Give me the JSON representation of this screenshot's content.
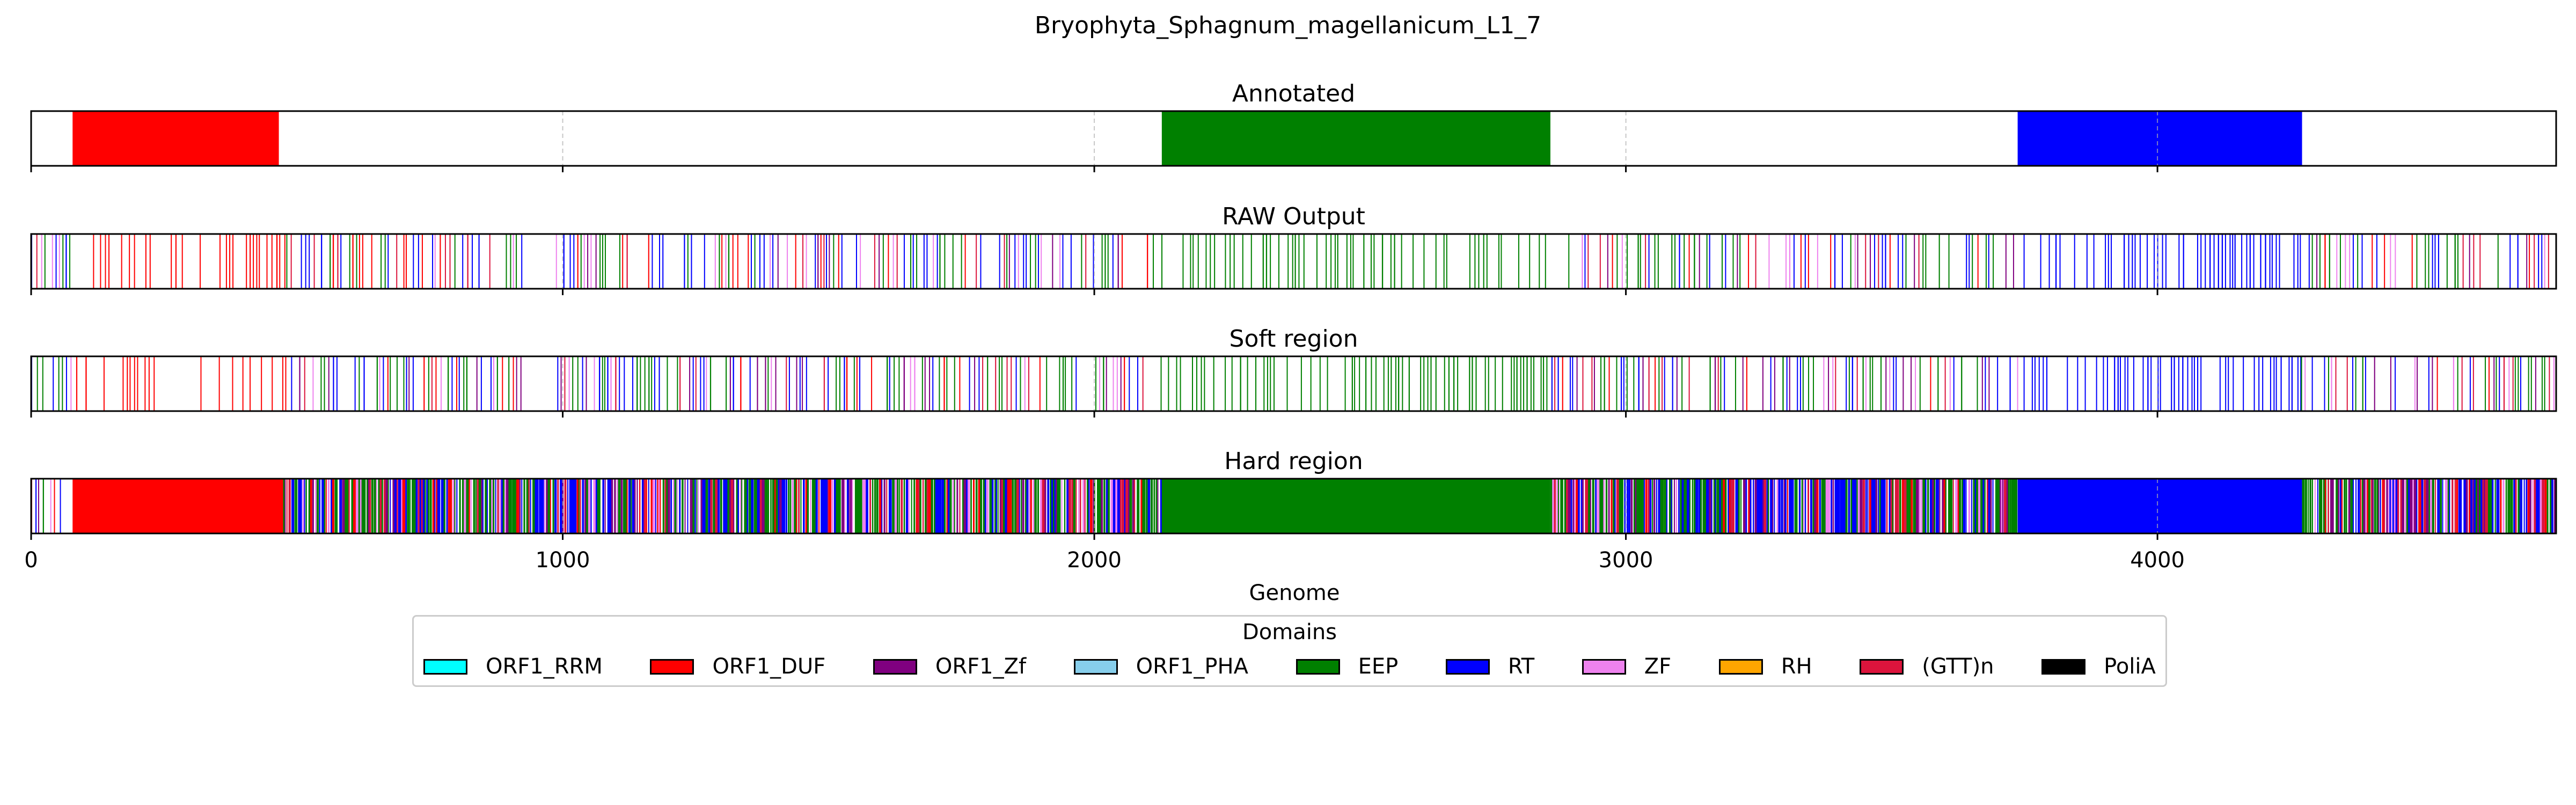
{
  "chart_data": {
    "type": "genome-track",
    "title": "Bryophyta_Sphagnum_magellanicum_L1_7",
    "xlabel": "Genome",
    "xlim": [
      0,
      4750
    ],
    "xticks": [
      0,
      1000,
      2000,
      3000,
      4000
    ],
    "colors": {
      "ORF1_RRM": "#00ffff",
      "ORF1_DUF": "#ff0000",
      "ORF1_Zf": "#800080",
      "ORF1_PHA": "#87ceeb",
      "EEP": "#008000",
      "RT": "#0000ff",
      "ZF": "#ee82ee",
      "RH": "#ffa500",
      "(GTT)n": "#dc143c",
      "PoliA": "#000000"
    },
    "legend": {
      "title": "Domains",
      "items": [
        "ORF1_RRM",
        "ORF1_DUF",
        "ORF1_Zf",
        "ORF1_PHA",
        "EEP",
        "RT",
        "ZF",
        "RH",
        "(GTT)n",
        "PoliA"
      ]
    },
    "panels": [
      {
        "title": "Annotated",
        "segments": [
          {
            "start": 78,
            "end": 466,
            "domain": "ORF1_DUF"
          },
          {
            "start": 2127,
            "end": 2858,
            "domain": "EEP"
          },
          {
            "start": 3737,
            "end": 4272,
            "domain": "RT"
          }
        ]
      },
      {
        "title": "RAW Output",
        "segments": [
          {
            "start": 0,
            "end": 80,
            "domain": "mixed"
          },
          {
            "start": 80,
            "end": 480,
            "domain": "ORF1_DUF",
            "density": 0.45
          },
          {
            "start": 480,
            "end": 930,
            "domain": "mixed"
          },
          {
            "start": 930,
            "end": 980,
            "domain": "none"
          },
          {
            "start": 980,
            "end": 2110,
            "domain": "mixed"
          },
          {
            "start": 2110,
            "end": 2860,
            "domain": "EEP",
            "density": 0.55
          },
          {
            "start": 2860,
            "end": 3740,
            "domain": "mixed"
          },
          {
            "start": 3740,
            "end": 4270,
            "domain": "RT",
            "density": 0.6
          },
          {
            "start": 4270,
            "end": 4750,
            "domain": "mixed"
          }
        ]
      },
      {
        "title": "Soft region",
        "segments": [
          {
            "start": 0,
            "end": 80,
            "domain": "mixed"
          },
          {
            "start": 80,
            "end": 480,
            "domain": "ORF1_DUF",
            "density": 0.45
          },
          {
            "start": 480,
            "end": 930,
            "domain": "mixed"
          },
          {
            "start": 930,
            "end": 980,
            "domain": "none"
          },
          {
            "start": 980,
            "end": 2110,
            "domain": "mixed"
          },
          {
            "start": 2110,
            "end": 2860,
            "domain": "EEP",
            "density": 0.55
          },
          {
            "start": 2860,
            "end": 3740,
            "domain": "mixed"
          },
          {
            "start": 3740,
            "end": 4270,
            "domain": "RT",
            "density": 0.6
          },
          {
            "start": 4270,
            "end": 4750,
            "domain": "mixed"
          }
        ]
      },
      {
        "title": "Hard region",
        "segments": [
          {
            "start": 0,
            "end": 78,
            "domain": "mixed"
          },
          {
            "start": 78,
            "end": 474,
            "domain": "ORF1_DUF"
          },
          {
            "start": 474,
            "end": 2127,
            "domain": "mixed-dense"
          },
          {
            "start": 2127,
            "end": 2858,
            "domain": "EEP"
          },
          {
            "start": 2858,
            "end": 3737,
            "domain": "mixed-dense"
          },
          {
            "start": 3737,
            "end": 4272,
            "domain": "RT"
          },
          {
            "start": 4272,
            "end": 4750,
            "domain": "mixed-dense"
          }
        ]
      }
    ]
  }
}
